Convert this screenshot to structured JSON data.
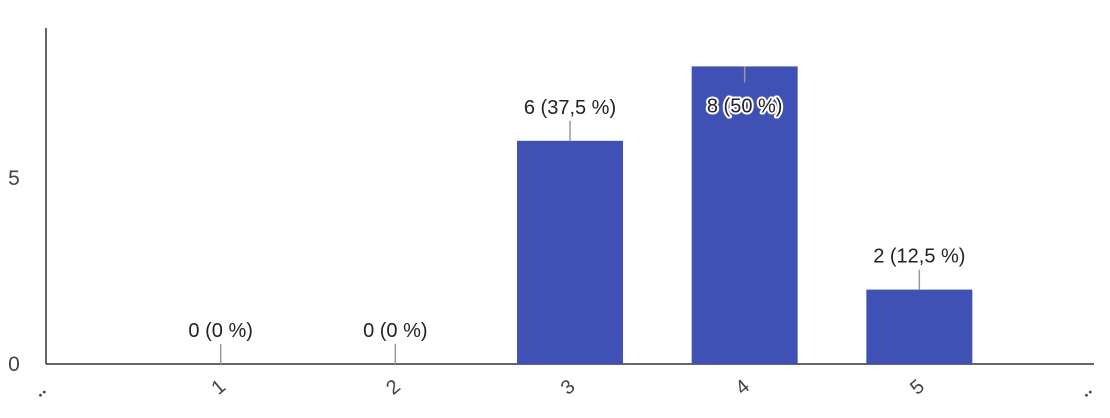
{
  "chart_data": {
    "type": "bar",
    "title": "",
    "xlabel": "",
    "ylabel": "",
    "categories": [
      "1",
      "2",
      "3",
      "4",
      "5"
    ],
    "values": [
      0,
      0,
      6,
      8,
      2
    ],
    "data_labels": [
      "0 (0 %)",
      "0 (0 %)",
      "6 (37,5 %)",
      "8 (50 %)",
      "2 (12,5 %)"
    ],
    "y_ticks": [
      "0",
      "5"
    ],
    "ylim": [
      0,
      8.5
    ],
    "grid": false,
    "legend": "none",
    "bar_color": "#3f51b5",
    "axis_color": "#333333"
  }
}
